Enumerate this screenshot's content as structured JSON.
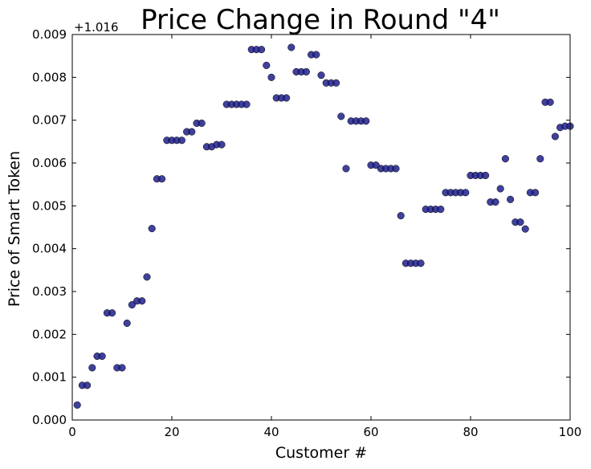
{
  "chart_data": {
    "type": "scatter",
    "title": "Price Change in Round \"4\"",
    "xlabel": "Customer #",
    "ylabel": "Price of Smart Token",
    "offset_label": "+1.016",
    "xlim": [
      0,
      100
    ],
    "ylim": [
      0.0,
      0.009
    ],
    "xticks": [
      0,
      20,
      40,
      60,
      80,
      100
    ],
    "xtick_labels": [
      "0",
      "20",
      "40",
      "60",
      "80",
      "100"
    ],
    "yticks": [
      0.0,
      0.001,
      0.002,
      0.003,
      0.004,
      0.005,
      0.006,
      0.007,
      0.008,
      0.009
    ],
    "ytick_labels": [
      "0.000",
      "0.001",
      "0.002",
      "0.003",
      "0.004",
      "0.005",
      "0.006",
      "0.007",
      "0.008",
      "0.009"
    ],
    "grid": false,
    "marker_color": "#1f1f8c",
    "x": [
      1,
      2,
      3,
      4,
      5,
      6,
      7,
      8,
      9,
      10,
      11,
      12,
      13,
      14,
      15,
      16,
      17,
      18,
      19,
      20,
      21,
      22,
      23,
      24,
      25,
      26,
      27,
      28,
      29,
      30,
      31,
      32,
      33,
      34,
      35,
      36,
      37,
      38,
      39,
      40,
      41,
      42,
      43,
      44,
      45,
      46,
      47,
      48,
      49,
      50,
      51,
      52,
      53,
      54,
      55,
      56,
      57,
      58,
      59,
      60,
      61,
      62,
      63,
      64,
      65,
      66,
      67,
      68,
      69,
      70,
      71,
      72,
      73,
      74,
      75,
      76,
      77,
      78,
      79,
      80,
      81,
      82,
      83,
      84,
      85,
      86,
      87,
      88,
      89,
      90,
      91,
      92,
      93,
      94,
      95,
      96,
      97,
      98,
      99,
      100
    ],
    "y": [
      0.00035,
      0.00081,
      0.00081,
      0.00122,
      0.00149,
      0.00149,
      0.0025,
      0.0025,
      0.00122,
      0.00122,
      0.00226,
      0.00269,
      0.00278,
      0.00278,
      0.00334,
      0.00447,
      0.00563,
      0.00563,
      0.00653,
      0.00653,
      0.00653,
      0.00653,
      0.00673,
      0.00673,
      0.00693,
      0.00693,
      0.00638,
      0.00638,
      0.00643,
      0.00643,
      0.00737,
      0.00737,
      0.00737,
      0.00737,
      0.00737,
      0.00865,
      0.00865,
      0.00865,
      0.00828,
      0.008,
      0.00752,
      0.00752,
      0.00752,
      0.0087,
      0.00813,
      0.00813,
      0.00813,
      0.00853,
      0.00853,
      0.00805,
      0.00787,
      0.00787,
      0.00787,
      0.00709,
      0.00587,
      0.00698,
      0.00698,
      0.00698,
      0.00698,
      0.00595,
      0.00595,
      0.00587,
      0.00587,
      0.00587,
      0.00587,
      0.00477,
      0.00366,
      0.00366,
      0.00366,
      0.00366,
      0.00492,
      0.00492,
      0.00492,
      0.00492,
      0.00531,
      0.00531,
      0.00531,
      0.00531,
      0.00531,
      0.00571,
      0.00571,
      0.00571,
      0.00571,
      0.00509,
      0.00509,
      0.0054,
      0.0061,
      0.00515,
      0.00462,
      0.00462,
      0.00446,
      0.00531,
      0.00531,
      0.0061,
      0.00742,
      0.00742,
      0.00662,
      0.00683,
      0.00686,
      0.00686
    ]
  }
}
